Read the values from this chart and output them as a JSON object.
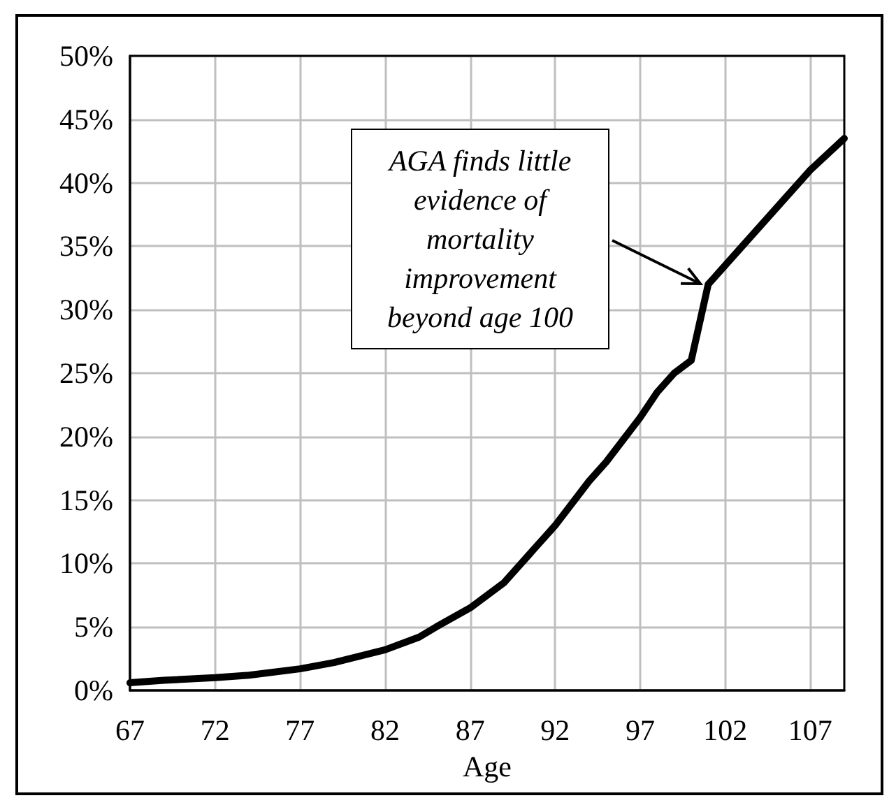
{
  "chart_data": {
    "type": "line",
    "xlabel": "Age",
    "series": [
      {
        "color": "#000000",
        "x": [
          67,
          69,
          72,
          74,
          77,
          79,
          82,
          84,
          85,
          87,
          89,
          90,
          92,
          94,
          95,
          97,
          98,
          99,
          100,
          101,
          102,
          103,
          104,
          106,
          107,
          109
        ],
        "values": [
          0.6,
          0.8,
          1.0,
          1.2,
          1.7,
          2.2,
          3.2,
          4.2,
          5,
          6.5,
          8.5,
          10,
          13,
          16.5,
          18,
          21.5,
          23.5,
          25,
          26,
          32,
          33.5,
          35,
          36.5,
          39.5,
          41,
          43.5
        ]
      }
    ],
    "xlim": [
      67,
      109
    ],
    "xticks": [
      67,
      72,
      77,
      82,
      87,
      92,
      97,
      102,
      107
    ],
    "ylim": [
      0,
      50
    ],
    "yticks": [
      {
        "value": 0,
        "label": "0%"
      },
      {
        "value": 5,
        "label": "5%"
      },
      {
        "value": 10,
        "label": "10%"
      },
      {
        "value": 15,
        "label": "15%"
      },
      {
        "value": 20,
        "label": "20%"
      },
      {
        "value": 25,
        "label": "25%"
      },
      {
        "value": 30,
        "label": "30%"
      },
      {
        "value": 35,
        "label": "35%"
      },
      {
        "value": 40,
        "label": "40%"
      },
      {
        "value": 45,
        "label": "45%"
      },
      {
        "value": 50,
        "label": "50%"
      }
    ],
    "grid": true,
    "marker": "none",
    "line_style": "solid",
    "annotations": [
      "AGA finds little evidence of mortality improvement beyond age 100"
    ]
  }
}
